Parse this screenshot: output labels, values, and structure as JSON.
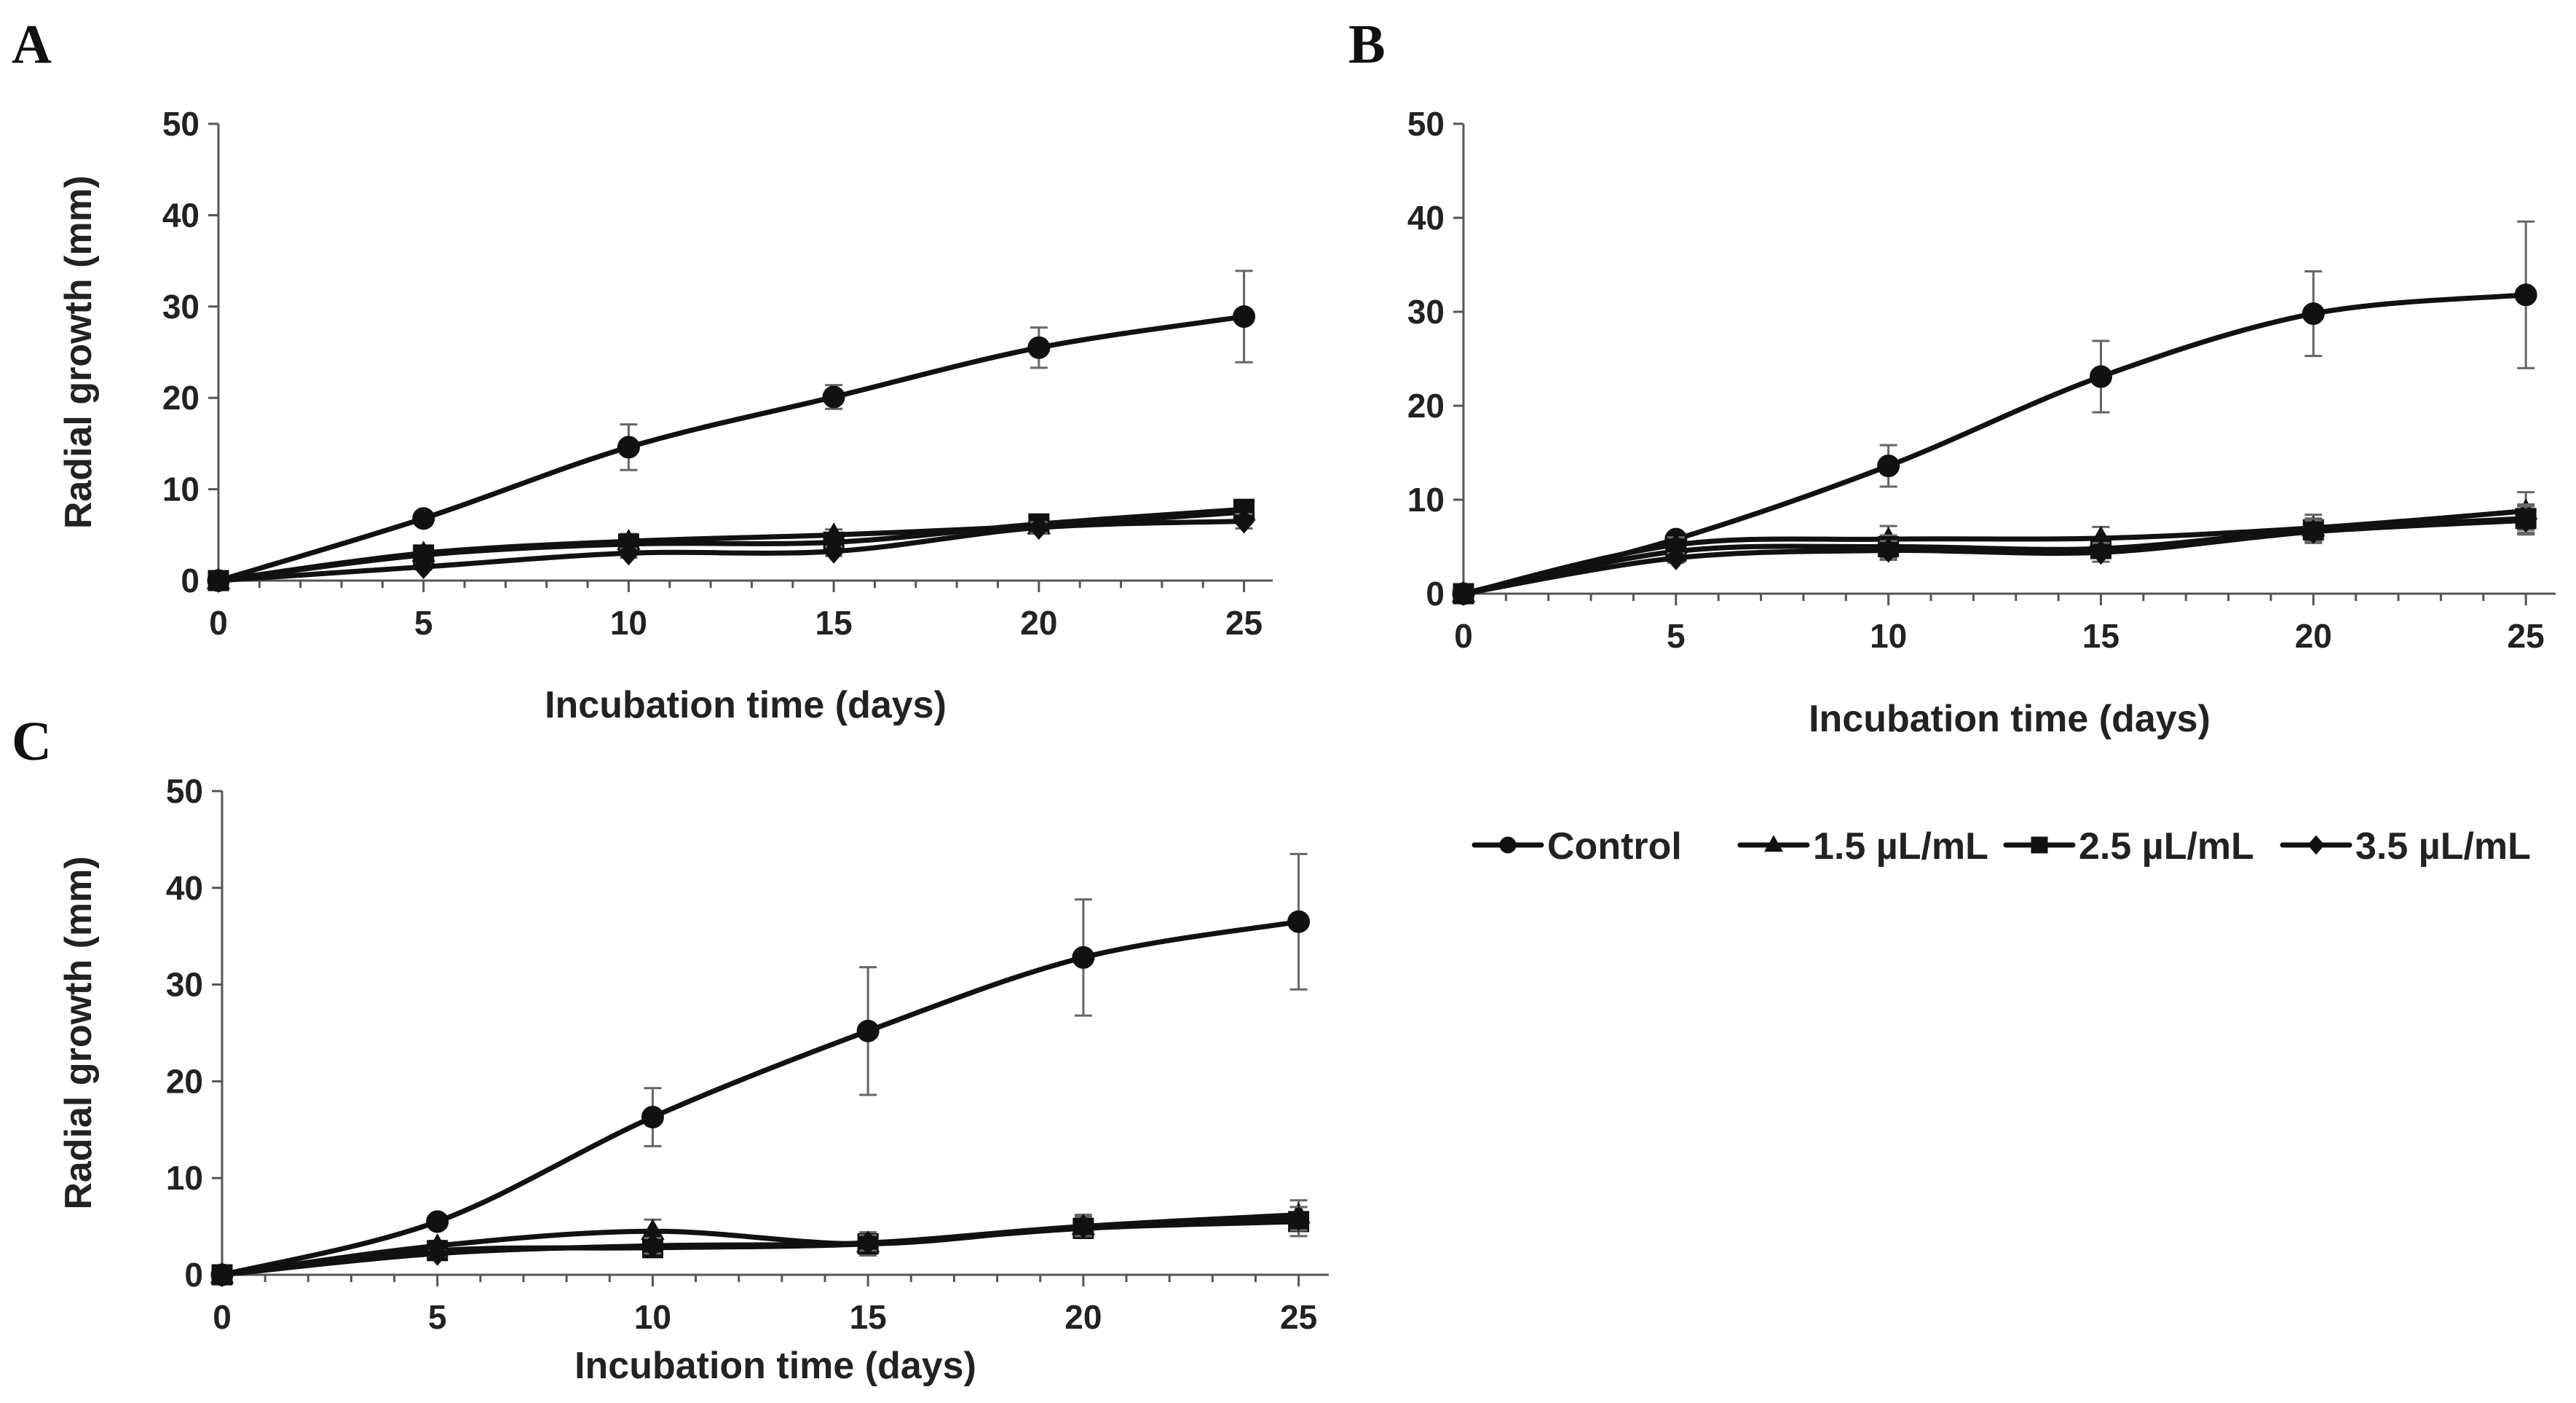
{
  "chart_data": [
    {
      "type": "line",
      "panel": "A",
      "xlabel": "Incubation time (days)",
      "ylabel": "Radial growth (mm)",
      "x": [
        0,
        5,
        10,
        15,
        20,
        25
      ],
      "xticks": [
        0,
        5,
        10,
        15,
        20,
        25
      ],
      "yticks": [
        0,
        10,
        20,
        30,
        40,
        50
      ],
      "xlim": [
        0,
        25.7
      ],
      "ylim": [
        0,
        50
      ],
      "series": [
        {
          "name": "Control",
          "marker": "circle",
          "values": [
            0,
            6.8,
            14.6,
            20.1,
            25.5,
            28.9
          ],
          "errors": [
            0,
            0.5,
            2.5,
            1.3,
            2.2,
            5.0
          ]
        },
        {
          "name": "1.5 µL/mL",
          "marker": "triangle",
          "values": [
            0,
            3.0,
            4.3,
            5.0,
            6.0,
            7.5
          ],
          "errors": [
            0,
            0.4,
            0.8,
            0.6,
            0.8,
            1.2
          ]
        },
        {
          "name": "2.5 µL/mL",
          "marker": "square",
          "values": [
            0,
            2.8,
            4.0,
            4.2,
            6.2,
            7.8
          ],
          "errors": [
            0,
            0.4,
            0.6,
            0.6,
            0.7,
            1.0
          ]
        },
        {
          "name": "3.5 µL/mL",
          "marker": "diamond",
          "values": [
            0,
            1.5,
            3.0,
            3.2,
            5.8,
            6.5
          ],
          "errors": [
            0,
            0.3,
            0.5,
            0.5,
            0.6,
            0.8
          ]
        }
      ]
    },
    {
      "type": "line",
      "panel": "B",
      "xlabel": "Incubation time (days)",
      "ylabel": "",
      "x": [
        0,
        5,
        10,
        15,
        20,
        25
      ],
      "xticks": [
        0,
        5,
        10,
        15,
        20,
        25
      ],
      "yticks": [
        0,
        10,
        20,
        30,
        40,
        50
      ],
      "xlim": [
        0,
        25.7
      ],
      "ylim": [
        0,
        50
      ],
      "series": [
        {
          "name": "Control",
          "marker": "circle",
          "values": [
            0,
            5.8,
            13.6,
            23.1,
            29.8,
            31.8
          ],
          "errors": [
            0,
            0.5,
            2.2,
            3.8,
            4.5,
            7.8
          ]
        },
        {
          "name": "1.5 µL/mL",
          "marker": "triangle",
          "values": [
            0,
            5.2,
            5.8,
            5.9,
            7.0,
            8.8
          ],
          "errors": [
            0,
            0.8,
            1.4,
            1.2,
            1.4,
            2.0
          ]
        },
        {
          "name": "2.5 µL/mL",
          "marker": "square",
          "values": [
            0,
            4.5,
            5.0,
            4.8,
            6.8,
            8.0
          ],
          "errors": [
            0,
            0.6,
            1.2,
            1.0,
            1.2,
            1.5
          ]
        },
        {
          "name": "3.5 µL/mL",
          "marker": "diamond",
          "values": [
            0,
            3.8,
            4.6,
            4.4,
            6.6,
            7.8
          ],
          "errors": [
            0,
            0.5,
            1.0,
            1.0,
            1.2,
            1.5
          ]
        }
      ]
    },
    {
      "type": "line",
      "panel": "C",
      "xlabel": "Incubation time (days)",
      "ylabel": "Radial growth (mm)",
      "x": [
        0,
        5,
        10,
        15,
        20,
        25
      ],
      "xticks": [
        0,
        5,
        10,
        15,
        20,
        25
      ],
      "yticks": [
        0,
        10,
        20,
        30,
        40,
        50
      ],
      "xlim": [
        0,
        25.7
      ],
      "ylim": [
        0,
        50
      ],
      "series": [
        {
          "name": "Control",
          "marker": "circle",
          "values": [
            0,
            5.5,
            16.3,
            25.2,
            32.8,
            36.5
          ],
          "errors": [
            0,
            0.5,
            3.0,
            6.6,
            6.0,
            7.0
          ]
        },
        {
          "name": "1.5 µL/mL",
          "marker": "triangle",
          "values": [
            0,
            3.0,
            4.5,
            3.2,
            5.0,
            6.2
          ],
          "errors": [
            0,
            0.5,
            1.2,
            1.2,
            1.2,
            1.5
          ]
        },
        {
          "name": "2.5 µL/mL",
          "marker": "square",
          "values": [
            0,
            2.5,
            2.8,
            3.2,
            4.8,
            5.5
          ],
          "errors": [
            0,
            0.4,
            0.8,
            0.8,
            1.0,
            1.5
          ]
        },
        {
          "name": "3.5 µL/mL",
          "marker": "diamond",
          "values": [
            0,
            2.2,
            3.0,
            3.3,
            5.0,
            5.8
          ],
          "errors": [
            0,
            0.3,
            0.8,
            0.8,
            1.0,
            1.2
          ]
        }
      ]
    }
  ],
  "legend": {
    "items": [
      {
        "label": "Control",
        "marker": "circle"
      },
      {
        "label": "1.5 µL/mL",
        "marker": "triangle"
      },
      {
        "label": "2.5 µL/mL",
        "marker": "square"
      },
      {
        "label": "3.5 µL/mL",
        "marker": "diamond"
      }
    ]
  },
  "colors": {
    "series": "#111111",
    "axis": "#555555",
    "error_bar": "#666666"
  }
}
